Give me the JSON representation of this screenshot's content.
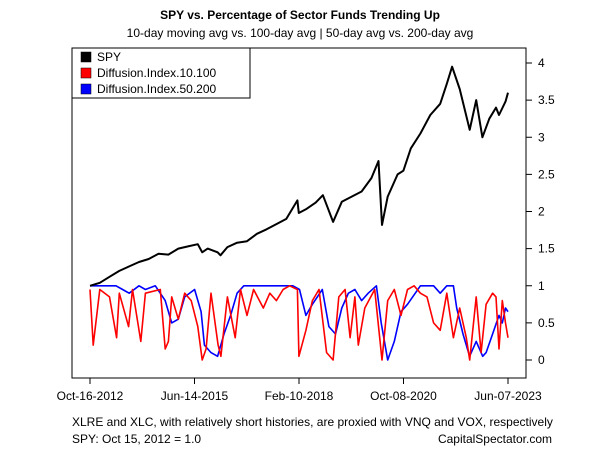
{
  "chart_data": {
    "type": "line",
    "title": "SPY vs. Percentage of Sector Funds Trending Up",
    "subtitle": "10-day moving avg vs. 100-day avg | 50-day avg vs. 200-day avg",
    "x_ticks": [
      "Oct-16-2012",
      "Jun-14-2015",
      "Feb-10-2018",
      "Oct-08-2020",
      "Jun-07-2023"
    ],
    "x_range": [
      "2012-10-16",
      "2023-06-07"
    ],
    "ylim": [
      -0.2,
      4.25
    ],
    "y_ticks": [
      0,
      0.5,
      1,
      1.5,
      2,
      2.5,
      3,
      3.5,
      4
    ],
    "y_tick_labels": [
      "0",
      "0.5",
      "1",
      "1.5",
      "2",
      "2.5",
      "3",
      "3.5",
      "4"
    ],
    "y_axis_side": "right",
    "legend_position": "top-left",
    "series": [
      {
        "name": "SPY",
        "color": "#000000",
        "x": [
          "2012-10-16",
          "2013-01-15",
          "2013-04-15",
          "2013-07-15",
          "2013-10-15",
          "2014-01-15",
          "2014-04-15",
          "2014-07-15",
          "2014-10-15",
          "2015-01-15",
          "2015-04-15",
          "2015-07-15",
          "2015-08-25",
          "2015-10-15",
          "2016-01-15",
          "2016-02-11",
          "2016-04-15",
          "2016-07-15",
          "2016-10-15",
          "2017-01-15",
          "2017-04-15",
          "2017-07-15",
          "2017-10-15",
          "2018-01-26",
          "2018-02-08",
          "2018-04-15",
          "2018-07-15",
          "2018-09-20",
          "2018-12-24",
          "2019-03-15",
          "2019-06-15",
          "2019-09-15",
          "2019-12-15",
          "2020-02-19",
          "2020-03-23",
          "2020-05-15",
          "2020-08-15",
          "2020-10-08",
          "2020-12-15",
          "2021-03-15",
          "2021-06-15",
          "2021-09-15",
          "2021-11-15",
          "2022-01-03",
          "2022-03-15",
          "2022-06-16",
          "2022-08-15",
          "2022-10-12",
          "2022-12-15",
          "2023-02-15",
          "2023-03-15",
          "2023-05-15",
          "2023-06-07"
        ],
        "values": [
          1.0,
          1.04,
          1.12,
          1.2,
          1.26,
          1.32,
          1.36,
          1.43,
          1.42,
          1.5,
          1.53,
          1.56,
          1.45,
          1.5,
          1.45,
          1.41,
          1.52,
          1.58,
          1.6,
          1.7,
          1.76,
          1.83,
          1.9,
          2.15,
          1.98,
          2.03,
          2.12,
          2.22,
          1.86,
          2.13,
          2.2,
          2.27,
          2.45,
          2.68,
          1.82,
          2.2,
          2.5,
          2.55,
          2.85,
          3.05,
          3.3,
          3.45,
          3.72,
          3.95,
          3.65,
          3.1,
          3.5,
          3.0,
          3.25,
          3.4,
          3.3,
          3.48,
          3.6
        ]
      },
      {
        "name": "Diffusion.Index.10.100",
        "color": "#ff0000",
        "x": [
          "2012-10-16",
          "2012-11-15",
          "2013-01-15",
          "2013-04-15",
          "2013-06-20",
          "2013-07-15",
          "2013-10-10",
          "2013-11-15",
          "2014-01-31",
          "2014-03-15",
          "2014-08-01",
          "2014-09-15",
          "2014-10-15",
          "2014-11-15",
          "2015-01-15",
          "2015-03-15",
          "2015-05-15",
          "2015-07-15",
          "2015-08-25",
          "2015-09-30",
          "2015-11-15",
          "2016-01-20",
          "2016-02-15",
          "2016-04-15",
          "2016-06-27",
          "2016-08-15",
          "2016-10-15",
          "2016-12-15",
          "2017-03-15",
          "2017-05-15",
          "2017-07-15",
          "2017-09-15",
          "2017-11-15",
          "2018-01-26",
          "2018-02-09",
          "2018-04-15",
          "2018-06-15",
          "2018-08-15",
          "2018-10-25",
          "2018-12-24",
          "2019-02-15",
          "2019-04-15",
          "2019-05-31",
          "2019-07-15",
          "2019-08-15",
          "2019-10-15",
          "2020-01-15",
          "2020-03-23",
          "2020-04-15",
          "2020-05-15",
          "2020-07-15",
          "2020-09-15",
          "2020-11-15",
          "2021-01-15",
          "2021-03-15",
          "2021-05-15",
          "2021-07-15",
          "2021-09-15",
          "2021-11-15",
          "2022-01-15",
          "2022-03-15",
          "2022-05-15",
          "2022-06-16",
          "2022-08-15",
          "2022-09-30",
          "2022-11-15",
          "2023-01-15",
          "2023-02-15",
          "2023-03-15",
          "2023-04-15",
          "2023-05-15",
          "2023-06-07"
        ],
        "values": [
          0.95,
          0.2,
          0.95,
          0.85,
          0.3,
          0.9,
          0.45,
          0.95,
          0.25,
          0.9,
          0.95,
          0.15,
          0.25,
          0.85,
          0.55,
          0.9,
          0.8,
          0.45,
          0.0,
          0.15,
          0.9,
          0.2,
          0.05,
          0.85,
          0.3,
          0.95,
          0.6,
          0.95,
          0.7,
          0.9,
          0.8,
          0.95,
          1.0,
          0.95,
          0.05,
          0.4,
          0.8,
          0.95,
          0.1,
          0.0,
          0.85,
          0.95,
          0.3,
          0.85,
          0.2,
          0.7,
          0.95,
          0.0,
          0.35,
          0.8,
          0.95,
          0.6,
          0.95,
          1.0,
          0.9,
          0.85,
          0.5,
          0.4,
          0.9,
          0.3,
          0.7,
          0.3,
          0.0,
          0.85,
          0.1,
          0.75,
          0.9,
          0.85,
          0.15,
          0.8,
          0.5,
          0.3
        ]
      },
      {
        "name": "Diffusion.Index.50.200",
        "color": "#0000ff",
        "x": [
          "2012-10-16",
          "2013-01-15",
          "2013-06-15",
          "2013-08-15",
          "2013-10-15",
          "2014-01-15",
          "2014-03-15",
          "2014-06-15",
          "2014-09-15",
          "2014-11-15",
          "2015-01-15",
          "2015-03-15",
          "2015-06-15",
          "2015-08-15",
          "2015-09-15",
          "2015-11-15",
          "2016-01-15",
          "2016-03-15",
          "2016-05-15",
          "2016-07-15",
          "2016-09-15",
          "2016-12-15",
          "2017-06-15",
          "2017-12-15",
          "2018-02-15",
          "2018-04-15",
          "2018-06-15",
          "2018-09-15",
          "2018-11-15",
          "2019-01-15",
          "2019-03-15",
          "2019-05-15",
          "2019-07-15",
          "2019-09-15",
          "2019-11-15",
          "2020-01-31",
          "2020-03-15",
          "2020-05-15",
          "2020-07-15",
          "2020-09-15",
          "2020-11-15",
          "2021-03-15",
          "2021-07-15",
          "2021-09-15",
          "2021-11-15",
          "2022-01-15",
          "2022-02-15",
          "2022-04-15",
          "2022-06-15",
          "2022-08-15",
          "2022-10-15",
          "2022-11-15",
          "2023-01-15",
          "2023-03-15",
          "2023-04-15",
          "2023-05-15",
          "2023-06-07"
        ],
        "values": [
          1.0,
          1.0,
          1.0,
          0.95,
          0.9,
          1.0,
          0.95,
          1.0,
          0.8,
          0.5,
          0.55,
          0.85,
          0.95,
          0.65,
          0.2,
          0.1,
          0.05,
          0.35,
          0.6,
          0.9,
          1.0,
          1.0,
          1.0,
          1.0,
          0.95,
          0.6,
          0.75,
          0.95,
          0.45,
          0.35,
          0.7,
          0.9,
          0.95,
          0.8,
          0.9,
          1.0,
          0.5,
          0.0,
          0.25,
          0.65,
          0.75,
          1.0,
          1.0,
          0.9,
          1.0,
          1.0,
          0.7,
          0.35,
          0.05,
          0.25,
          0.05,
          0.1,
          0.35,
          0.6,
          0.5,
          0.7,
          0.65
        ]
      }
    ]
  },
  "footer": {
    "line1": "XLRE and XLC, with relatively short histories, are proxied with VNQ and VOX, respectively",
    "line2": "SPY: Oct 15, 2012 = 1.0",
    "source": "CapitalSpectator.com"
  }
}
